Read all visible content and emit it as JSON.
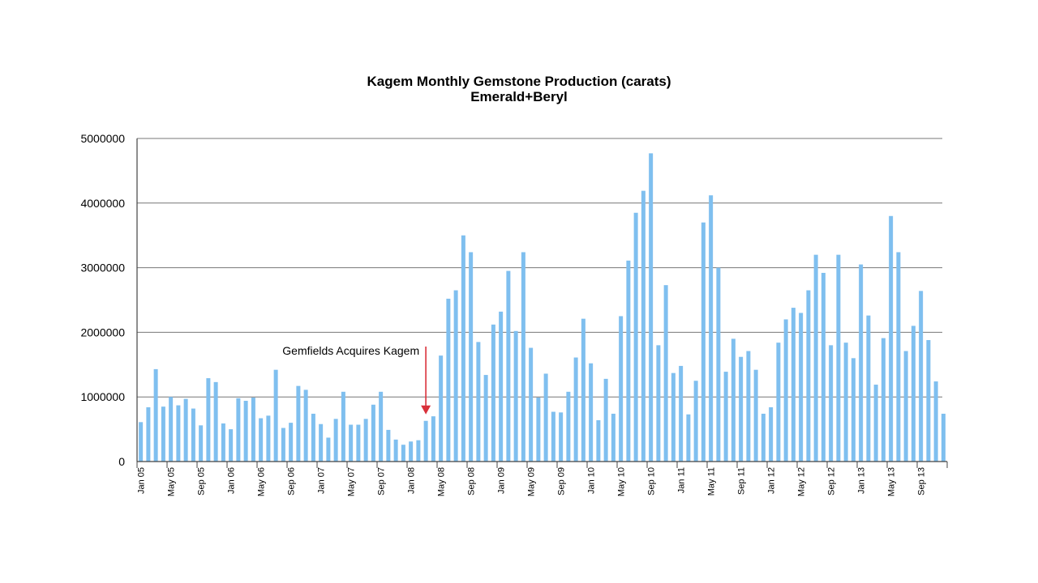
{
  "chart_data": {
    "type": "bar",
    "title": "Kagem Monthly Gemstone Production (carats)",
    "subtitle": "Emerald+Beryl",
    "ylim": [
      0,
      5000000
    ],
    "yticks": [
      0,
      1000000,
      2000000,
      3000000,
      4000000,
      5000000
    ],
    "ytick_labels": [
      "0",
      "1000000",
      "2000000",
      "3000000",
      "4000000",
      "5000000"
    ],
    "grid": true,
    "bar_color": "#7fbfef",
    "arrow_color": "#d9303a",
    "categories": [
      "Jan 05",
      "Feb 05",
      "Mar 05",
      "Apr 05",
      "May 05",
      "Jun 05",
      "Jul 05",
      "Aug 05",
      "Sep 05",
      "Oct 05",
      "Nov 05",
      "Dec 05",
      "Jan 06",
      "Feb 06",
      "Mar 06",
      "Apr 06",
      "May 06",
      "Jun 06",
      "Jul 06",
      "Aug 06",
      "Sep 06",
      "Oct 06",
      "Nov 06",
      "Dec 06",
      "Jan 07",
      "Feb 07",
      "Mar 07",
      "Apr 07",
      "May 07",
      "Jun 07",
      "Jul 07",
      "Aug 07",
      "Sep 07",
      "Oct 07",
      "Nov 07",
      "Dec 07",
      "Jan 08",
      "Feb 08",
      "Mar 08",
      "Apr 08",
      "May 08",
      "Jun 08",
      "Jul 08",
      "Aug 08",
      "Sep 08",
      "Oct 08",
      "Nov 08",
      "Dec 08",
      "Jan 09",
      "Feb 09",
      "Mar 09",
      "Apr 09",
      "May 09",
      "Jun 09",
      "Jul 09",
      "Aug 09",
      "Sep 09",
      "Oct 09",
      "Nov 09",
      "Dec 09",
      "Jan 10",
      "Feb 10",
      "Mar 10",
      "Apr 10",
      "May 10",
      "Jun 10",
      "Jul 10",
      "Aug 10",
      "Sep 10",
      "Oct 10",
      "Nov 10",
      "Dec 10",
      "Jan 11",
      "Feb 11",
      "Mar 11",
      "Apr 11",
      "May 11",
      "Jun 11",
      "Jul 11",
      "Aug 11",
      "Sep 11",
      "Oct 11",
      "Nov 11",
      "Dec 11",
      "Jan 12",
      "Feb 12",
      "Mar 12",
      "Apr 12",
      "May 12",
      "Jun 12",
      "Jul 12",
      "Aug 12",
      "Sep 12",
      "Oct 12",
      "Nov 12",
      "Dec 12",
      "Jan 13",
      "Feb 13",
      "Mar 13",
      "Apr 13",
      "May 13",
      "Jun 13",
      "Jul 13",
      "Aug 13",
      "Sep 13",
      "Oct 13",
      "Nov 13",
      "Dec 13"
    ],
    "xtick_labels": [
      "Jan 05",
      "May 05",
      "Sep 05",
      "Jan 06",
      "May 06",
      "Sep 06",
      "Jan 07",
      "May 07",
      "Sep 07",
      "Jan 08",
      "May 08",
      "Sep 08",
      "Jan 09",
      "May 09",
      "Sep 09",
      "Jan 10",
      "May 10",
      "Sep 10",
      "Jan 11",
      "May 11",
      "Sep 11",
      "Jan 12",
      "May 12",
      "Sep 12",
      "Jan 13",
      "May 13",
      "Sep 13"
    ],
    "values": [
      610000,
      840000,
      1430000,
      850000,
      1000000,
      870000,
      970000,
      820000,
      560000,
      1290000,
      1230000,
      590000,
      500000,
      980000,
      940000,
      990000,
      670000,
      710000,
      1420000,
      520000,
      600000,
      1170000,
      1110000,
      740000,
      580000,
      370000,
      660000,
      1080000,
      570000,
      570000,
      660000,
      880000,
      1080000,
      490000,
      340000,
      260000,
      310000,
      330000,
      630000,
      700000,
      1640000,
      2520000,
      2650000,
      3500000,
      3240000,
      1850000,
      1340000,
      2120000,
      2320000,
      2950000,
      2020000,
      3240000,
      1760000,
      990000,
      1360000,
      770000,
      760000,
      1080000,
      1610000,
      2210000,
      1520000,
      640000,
      1280000,
      740000,
      2250000,
      3110000,
      3850000,
      4190000,
      4770000,
      1800000,
      2730000,
      1370000,
      1480000,
      730000,
      1250000,
      3700000,
      4120000,
      3000000,
      1390000,
      1900000,
      1620000,
      1710000,
      1420000,
      740000,
      840000,
      1840000,
      2200000,
      2380000,
      2300000,
      2650000,
      3200000,
      2920000,
      1800000,
      3200000,
      1840000,
      1600000,
      3050000,
      2260000,
      1190000,
      1910000,
      3800000,
      3240000,
      1710000,
      2100000,
      2640000,
      1880000,
      1240000,
      740000
    ],
    "annotations": [
      {
        "text": "Gemfields Acquires Kagem",
        "target": "Mar 08"
      }
    ]
  }
}
